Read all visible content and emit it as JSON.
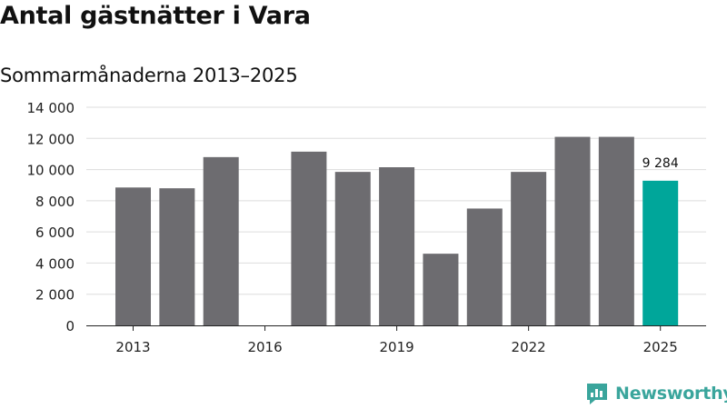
{
  "chart_data": {
    "type": "bar",
    "title": "Antal gästnätter i Vara",
    "subtitle": "Sommarmånaderna 2013–2025",
    "categories": [
      2013,
      2014,
      2015,
      2016,
      2017,
      2018,
      2019,
      2020,
      2021,
      2022,
      2023,
      2024,
      2025
    ],
    "values": [
      8850,
      8800,
      10800,
      null,
      11150,
      9850,
      10150,
      4600,
      7500,
      9850,
      12100,
      12100,
      9284
    ],
    "ylim": [
      0,
      14000
    ],
    "y_ticks": [
      0,
      2000,
      4000,
      6000,
      8000,
      10000,
      12000,
      14000
    ],
    "y_tick_labels": [
      "0",
      "2 000",
      "4 000",
      "6 000",
      "8 000",
      "10 000",
      "12 000",
      "14 000"
    ],
    "x_tick_labels": [
      "2013",
      "2016",
      "2019",
      "2022",
      "2025"
    ],
    "data_labels": [
      {
        "category": 2025,
        "text": "9 284"
      }
    ],
    "bar_color": "#6d6c70",
    "highlight_color": "#00a69a",
    "highlight_category": 2025,
    "grid": "horizontal",
    "legend": "none"
  },
  "brand": {
    "name": "Newsworthy",
    "color": "#3aa59c",
    "icon": "newsworthy-logo-icon"
  }
}
